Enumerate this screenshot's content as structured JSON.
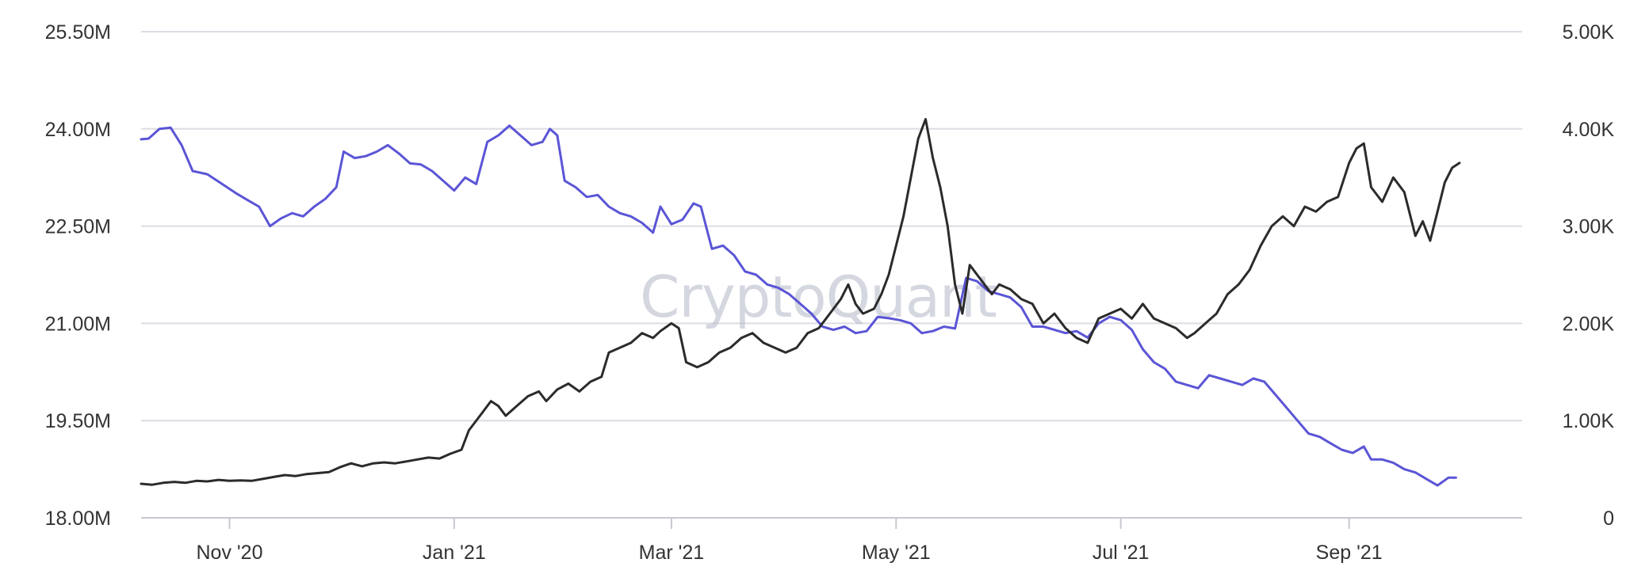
{
  "watermark": "CryptoQuant",
  "colors": {
    "background": "#ffffff",
    "grid": "#dcdde3",
    "axis_text": "#333333",
    "series_left": "#5b55d6",
    "series_right": "#2b2b2b",
    "watermark": "#b9bccb"
  },
  "chart_data": {
    "type": "line",
    "title": "",
    "xlabel": "",
    "ylabel": "",
    "grid": true,
    "legend": "none",
    "x_ticks": [
      "Nov '20",
      "Jan '21",
      "Mar '21",
      "May '21",
      "Jul '21",
      "Sep '21"
    ],
    "x_tick_dates": [
      "2020-11-01",
      "2021-01-01",
      "2021-03-01",
      "2021-05-01",
      "2021-07-01",
      "2021-09-01"
    ],
    "xlim": [
      "2020-10-08",
      "2021-10-18"
    ],
    "y_left": {
      "ticks": [
        "18.00M",
        "19.50M",
        "21.00M",
        "22.50M",
        "24.00M",
        "25.50M"
      ],
      "ylim": [
        18000000,
        25500000
      ]
    },
    "y_right": {
      "ticks": [
        "0",
        "1.00K",
        "2.00K",
        "3.00K",
        "4.00K",
        "5.00K"
      ],
      "ylim": [
        0,
        5000
      ]
    },
    "series": [
      {
        "axis": "left",
        "color": "#5b55d6",
        "points": [
          [
            "2020-10-08",
            23840000
          ],
          [
            "2020-10-10",
            23850000
          ],
          [
            "2020-10-13",
            24000000
          ],
          [
            "2020-10-16",
            24020000
          ],
          [
            "2020-10-19",
            23750000
          ],
          [
            "2020-10-22",
            23350000
          ],
          [
            "2020-10-26",
            23300000
          ],
          [
            "2020-10-30",
            23150000
          ],
          [
            "2020-11-03",
            23000000
          ],
          [
            "2020-11-06",
            22900000
          ],
          [
            "2020-11-09",
            22800000
          ],
          [
            "2020-11-12",
            22500000
          ],
          [
            "2020-11-15",
            22620000
          ],
          [
            "2020-11-18",
            22700000
          ],
          [
            "2020-11-21",
            22650000
          ],
          [
            "2020-11-24",
            22800000
          ],
          [
            "2020-11-27",
            22920000
          ],
          [
            "2020-11-30",
            23100000
          ],
          [
            "2020-12-02",
            23650000
          ],
          [
            "2020-12-05",
            23550000
          ],
          [
            "2020-12-08",
            23580000
          ],
          [
            "2020-12-11",
            23650000
          ],
          [
            "2020-12-14",
            23750000
          ],
          [
            "2020-12-17",
            23620000
          ],
          [
            "2020-12-20",
            23470000
          ],
          [
            "2020-12-23",
            23450000
          ],
          [
            "2020-12-26",
            23350000
          ],
          [
            "2020-12-29",
            23200000
          ],
          [
            "2021-01-01",
            23050000
          ],
          [
            "2021-01-04",
            23250000
          ],
          [
            "2021-01-07",
            23150000
          ],
          [
            "2021-01-10",
            23800000
          ],
          [
            "2021-01-13",
            23900000
          ],
          [
            "2021-01-16",
            24050000
          ],
          [
            "2021-01-19",
            23900000
          ],
          [
            "2021-01-22",
            23750000
          ],
          [
            "2021-01-25",
            23800000
          ],
          [
            "2021-01-27",
            24000000
          ],
          [
            "2021-01-29",
            23900000
          ],
          [
            "2021-01-31",
            23200000
          ],
          [
            "2021-02-03",
            23100000
          ],
          [
            "2021-02-06",
            22950000
          ],
          [
            "2021-02-09",
            22980000
          ],
          [
            "2021-02-12",
            22800000
          ],
          [
            "2021-02-15",
            22700000
          ],
          [
            "2021-02-18",
            22650000
          ],
          [
            "2021-02-21",
            22550000
          ],
          [
            "2021-02-24",
            22400000
          ],
          [
            "2021-02-26",
            22800000
          ],
          [
            "2021-03-01",
            22530000
          ],
          [
            "2021-03-04",
            22600000
          ],
          [
            "2021-03-07",
            22850000
          ],
          [
            "2021-03-09",
            22800000
          ],
          [
            "2021-03-12",
            22150000
          ],
          [
            "2021-03-15",
            22200000
          ],
          [
            "2021-03-18",
            22050000
          ],
          [
            "2021-03-21",
            21800000
          ],
          [
            "2021-03-24",
            21750000
          ],
          [
            "2021-03-27",
            21600000
          ],
          [
            "2021-03-30",
            21550000
          ],
          [
            "2021-04-02",
            21450000
          ],
          [
            "2021-04-05",
            21300000
          ],
          [
            "2021-04-08",
            21150000
          ],
          [
            "2021-04-11",
            20950000
          ],
          [
            "2021-04-14",
            20900000
          ],
          [
            "2021-04-17",
            20950000
          ],
          [
            "2021-04-20",
            20850000
          ],
          [
            "2021-04-23",
            20880000
          ],
          [
            "2021-04-26",
            21100000
          ],
          [
            "2021-04-29",
            21080000
          ],
          [
            "2021-05-02",
            21050000
          ],
          [
            "2021-05-05",
            21000000
          ],
          [
            "2021-05-08",
            20850000
          ],
          [
            "2021-05-11",
            20880000
          ],
          [
            "2021-05-14",
            20950000
          ],
          [
            "2021-05-17",
            20920000
          ],
          [
            "2021-05-20",
            21700000
          ],
          [
            "2021-05-23",
            21650000
          ],
          [
            "2021-05-26",
            21500000
          ],
          [
            "2021-05-29",
            21450000
          ],
          [
            "2021-06-01",
            21400000
          ],
          [
            "2021-06-04",
            21250000
          ],
          [
            "2021-06-07",
            20950000
          ],
          [
            "2021-06-10",
            20950000
          ],
          [
            "2021-06-13",
            20900000
          ],
          [
            "2021-06-16",
            20850000
          ],
          [
            "2021-06-19",
            20880000
          ],
          [
            "2021-06-22",
            20780000
          ],
          [
            "2021-06-25",
            21000000
          ],
          [
            "2021-06-28",
            21100000
          ],
          [
            "2021-07-01",
            21050000
          ],
          [
            "2021-07-04",
            20900000
          ],
          [
            "2021-07-07",
            20600000
          ],
          [
            "2021-07-10",
            20400000
          ],
          [
            "2021-07-13",
            20300000
          ],
          [
            "2021-07-16",
            20100000
          ],
          [
            "2021-07-19",
            20050000
          ],
          [
            "2021-07-22",
            20000000
          ],
          [
            "2021-07-25",
            20200000
          ],
          [
            "2021-07-28",
            20150000
          ],
          [
            "2021-07-31",
            20100000
          ],
          [
            "2021-08-03",
            20050000
          ],
          [
            "2021-08-06",
            20150000
          ],
          [
            "2021-08-09",
            20100000
          ],
          [
            "2021-08-12",
            19900000
          ],
          [
            "2021-08-15",
            19700000
          ],
          [
            "2021-08-18",
            19500000
          ],
          [
            "2021-08-21",
            19300000
          ],
          [
            "2021-08-24",
            19250000
          ],
          [
            "2021-08-27",
            19150000
          ],
          [
            "2021-08-30",
            19050000
          ],
          [
            "2021-09-02",
            19000000
          ],
          [
            "2021-09-05",
            19100000
          ],
          [
            "2021-09-07",
            18900000
          ],
          [
            "2021-09-10",
            18900000
          ],
          [
            "2021-09-13",
            18850000
          ],
          [
            "2021-09-16",
            18750000
          ],
          [
            "2021-09-19",
            18700000
          ],
          [
            "2021-09-22",
            18600000
          ],
          [
            "2021-09-25",
            18500000
          ],
          [
            "2021-09-28",
            18620000
          ],
          [
            "2021-09-30",
            18620000
          ]
        ]
      },
      {
        "axis": "right",
        "color": "#2b2b2b",
        "points": [
          [
            "2020-10-08",
            350
          ],
          [
            "2020-10-11",
            340
          ],
          [
            "2020-10-14",
            360
          ],
          [
            "2020-10-17",
            370
          ],
          [
            "2020-10-20",
            360
          ],
          [
            "2020-10-23",
            380
          ],
          [
            "2020-10-26",
            375
          ],
          [
            "2020-10-29",
            390
          ],
          [
            "2020-11-01",
            380
          ],
          [
            "2020-11-04",
            385
          ],
          [
            "2020-11-07",
            380
          ],
          [
            "2020-11-10",
            400
          ],
          [
            "2020-11-13",
            420
          ],
          [
            "2020-11-16",
            440
          ],
          [
            "2020-11-19",
            430
          ],
          [
            "2020-11-22",
            450
          ],
          [
            "2020-11-25",
            460
          ],
          [
            "2020-11-28",
            470
          ],
          [
            "2020-12-01",
            520
          ],
          [
            "2020-12-04",
            560
          ],
          [
            "2020-12-07",
            530
          ],
          [
            "2020-12-10",
            560
          ],
          [
            "2020-12-13",
            570
          ],
          [
            "2020-12-16",
            560
          ],
          [
            "2020-12-19",
            580
          ],
          [
            "2020-12-22",
            600
          ],
          [
            "2020-12-25",
            620
          ],
          [
            "2020-12-28",
            610
          ],
          [
            "2020-12-31",
            660
          ],
          [
            "2021-01-03",
            700
          ],
          [
            "2021-01-05",
            900
          ],
          [
            "2021-01-08",
            1050
          ],
          [
            "2021-01-11",
            1200
          ],
          [
            "2021-01-13",
            1150
          ],
          [
            "2021-01-15",
            1050
          ],
          [
            "2021-01-18",
            1150
          ],
          [
            "2021-01-21",
            1250
          ],
          [
            "2021-01-24",
            1300
          ],
          [
            "2021-01-26",
            1200
          ],
          [
            "2021-01-29",
            1320
          ],
          [
            "2021-02-01",
            1380
          ],
          [
            "2021-02-04",
            1300
          ],
          [
            "2021-02-07",
            1400
          ],
          [
            "2021-02-10",
            1450
          ],
          [
            "2021-02-12",
            1700
          ],
          [
            "2021-02-15",
            1750
          ],
          [
            "2021-02-18",
            1800
          ],
          [
            "2021-02-21",
            1900
          ],
          [
            "2021-02-24",
            1850
          ],
          [
            "2021-02-26",
            1920
          ],
          [
            "2021-03-01",
            2000
          ],
          [
            "2021-03-03",
            1950
          ],
          [
            "2021-03-05",
            1600
          ],
          [
            "2021-03-08",
            1550
          ],
          [
            "2021-03-11",
            1600
          ],
          [
            "2021-03-14",
            1700
          ],
          [
            "2021-03-17",
            1750
          ],
          [
            "2021-03-20",
            1850
          ],
          [
            "2021-03-23",
            1900
          ],
          [
            "2021-03-26",
            1800
          ],
          [
            "2021-03-29",
            1750
          ],
          [
            "2021-04-01",
            1700
          ],
          [
            "2021-04-04",
            1750
          ],
          [
            "2021-04-07",
            1900
          ],
          [
            "2021-04-10",
            1950
          ],
          [
            "2021-04-12",
            2050
          ],
          [
            "2021-04-14",
            2150
          ],
          [
            "2021-04-16",
            2250
          ],
          [
            "2021-04-18",
            2400
          ],
          [
            "2021-04-20",
            2200
          ],
          [
            "2021-04-22",
            2100
          ],
          [
            "2021-04-25",
            2150
          ],
          [
            "2021-04-27",
            2300
          ],
          [
            "2021-04-29",
            2500
          ],
          [
            "2021-05-01",
            2800
          ],
          [
            "2021-05-03",
            3100
          ],
          [
            "2021-05-05",
            3500
          ],
          [
            "2021-05-07",
            3900
          ],
          [
            "2021-05-09",
            4100
          ],
          [
            "2021-05-11",
            3700
          ],
          [
            "2021-05-13",
            3400
          ],
          [
            "2021-05-15",
            3000
          ],
          [
            "2021-05-17",
            2400
          ],
          [
            "2021-05-19",
            2100
          ],
          [
            "2021-05-21",
            2600
          ],
          [
            "2021-05-23",
            2500
          ],
          [
            "2021-05-25",
            2400
          ],
          [
            "2021-05-27",
            2300
          ],
          [
            "2021-05-29",
            2400
          ],
          [
            "2021-06-01",
            2350
          ],
          [
            "2021-06-04",
            2250
          ],
          [
            "2021-06-07",
            2200
          ],
          [
            "2021-06-10",
            2000
          ],
          [
            "2021-06-13",
            2100
          ],
          [
            "2021-06-16",
            1950
          ],
          [
            "2021-06-19",
            1850
          ],
          [
            "2021-06-22",
            1800
          ],
          [
            "2021-06-25",
            2050
          ],
          [
            "2021-06-28",
            2100
          ],
          [
            "2021-07-01",
            2150
          ],
          [
            "2021-07-04",
            2050
          ],
          [
            "2021-07-07",
            2200
          ],
          [
            "2021-07-10",
            2050
          ],
          [
            "2021-07-13",
            2000
          ],
          [
            "2021-07-16",
            1950
          ],
          [
            "2021-07-19",
            1850
          ],
          [
            "2021-07-21",
            1900
          ],
          [
            "2021-07-24",
            2000
          ],
          [
            "2021-07-27",
            2100
          ],
          [
            "2021-07-30",
            2300
          ],
          [
            "2021-08-02",
            2400
          ],
          [
            "2021-08-05",
            2550
          ],
          [
            "2021-08-08",
            2800
          ],
          [
            "2021-08-11",
            3000
          ],
          [
            "2021-08-14",
            3100
          ],
          [
            "2021-08-17",
            3000
          ],
          [
            "2021-08-20",
            3200
          ],
          [
            "2021-08-23",
            3150
          ],
          [
            "2021-08-26",
            3250
          ],
          [
            "2021-08-29",
            3300
          ],
          [
            "2021-09-01",
            3650
          ],
          [
            "2021-09-03",
            3800
          ],
          [
            "2021-09-05",
            3850
          ],
          [
            "2021-09-07",
            3400
          ],
          [
            "2021-09-10",
            3250
          ],
          [
            "2021-09-13",
            3500
          ],
          [
            "2021-09-16",
            3350
          ],
          [
            "2021-09-19",
            2900
          ],
          [
            "2021-09-21",
            3050
          ],
          [
            "2021-09-23",
            2850
          ],
          [
            "2021-09-25",
            3150
          ],
          [
            "2021-09-27",
            3450
          ],
          [
            "2021-09-29",
            3600
          ],
          [
            "2021-10-01",
            3650
          ]
        ]
      }
    ]
  }
}
